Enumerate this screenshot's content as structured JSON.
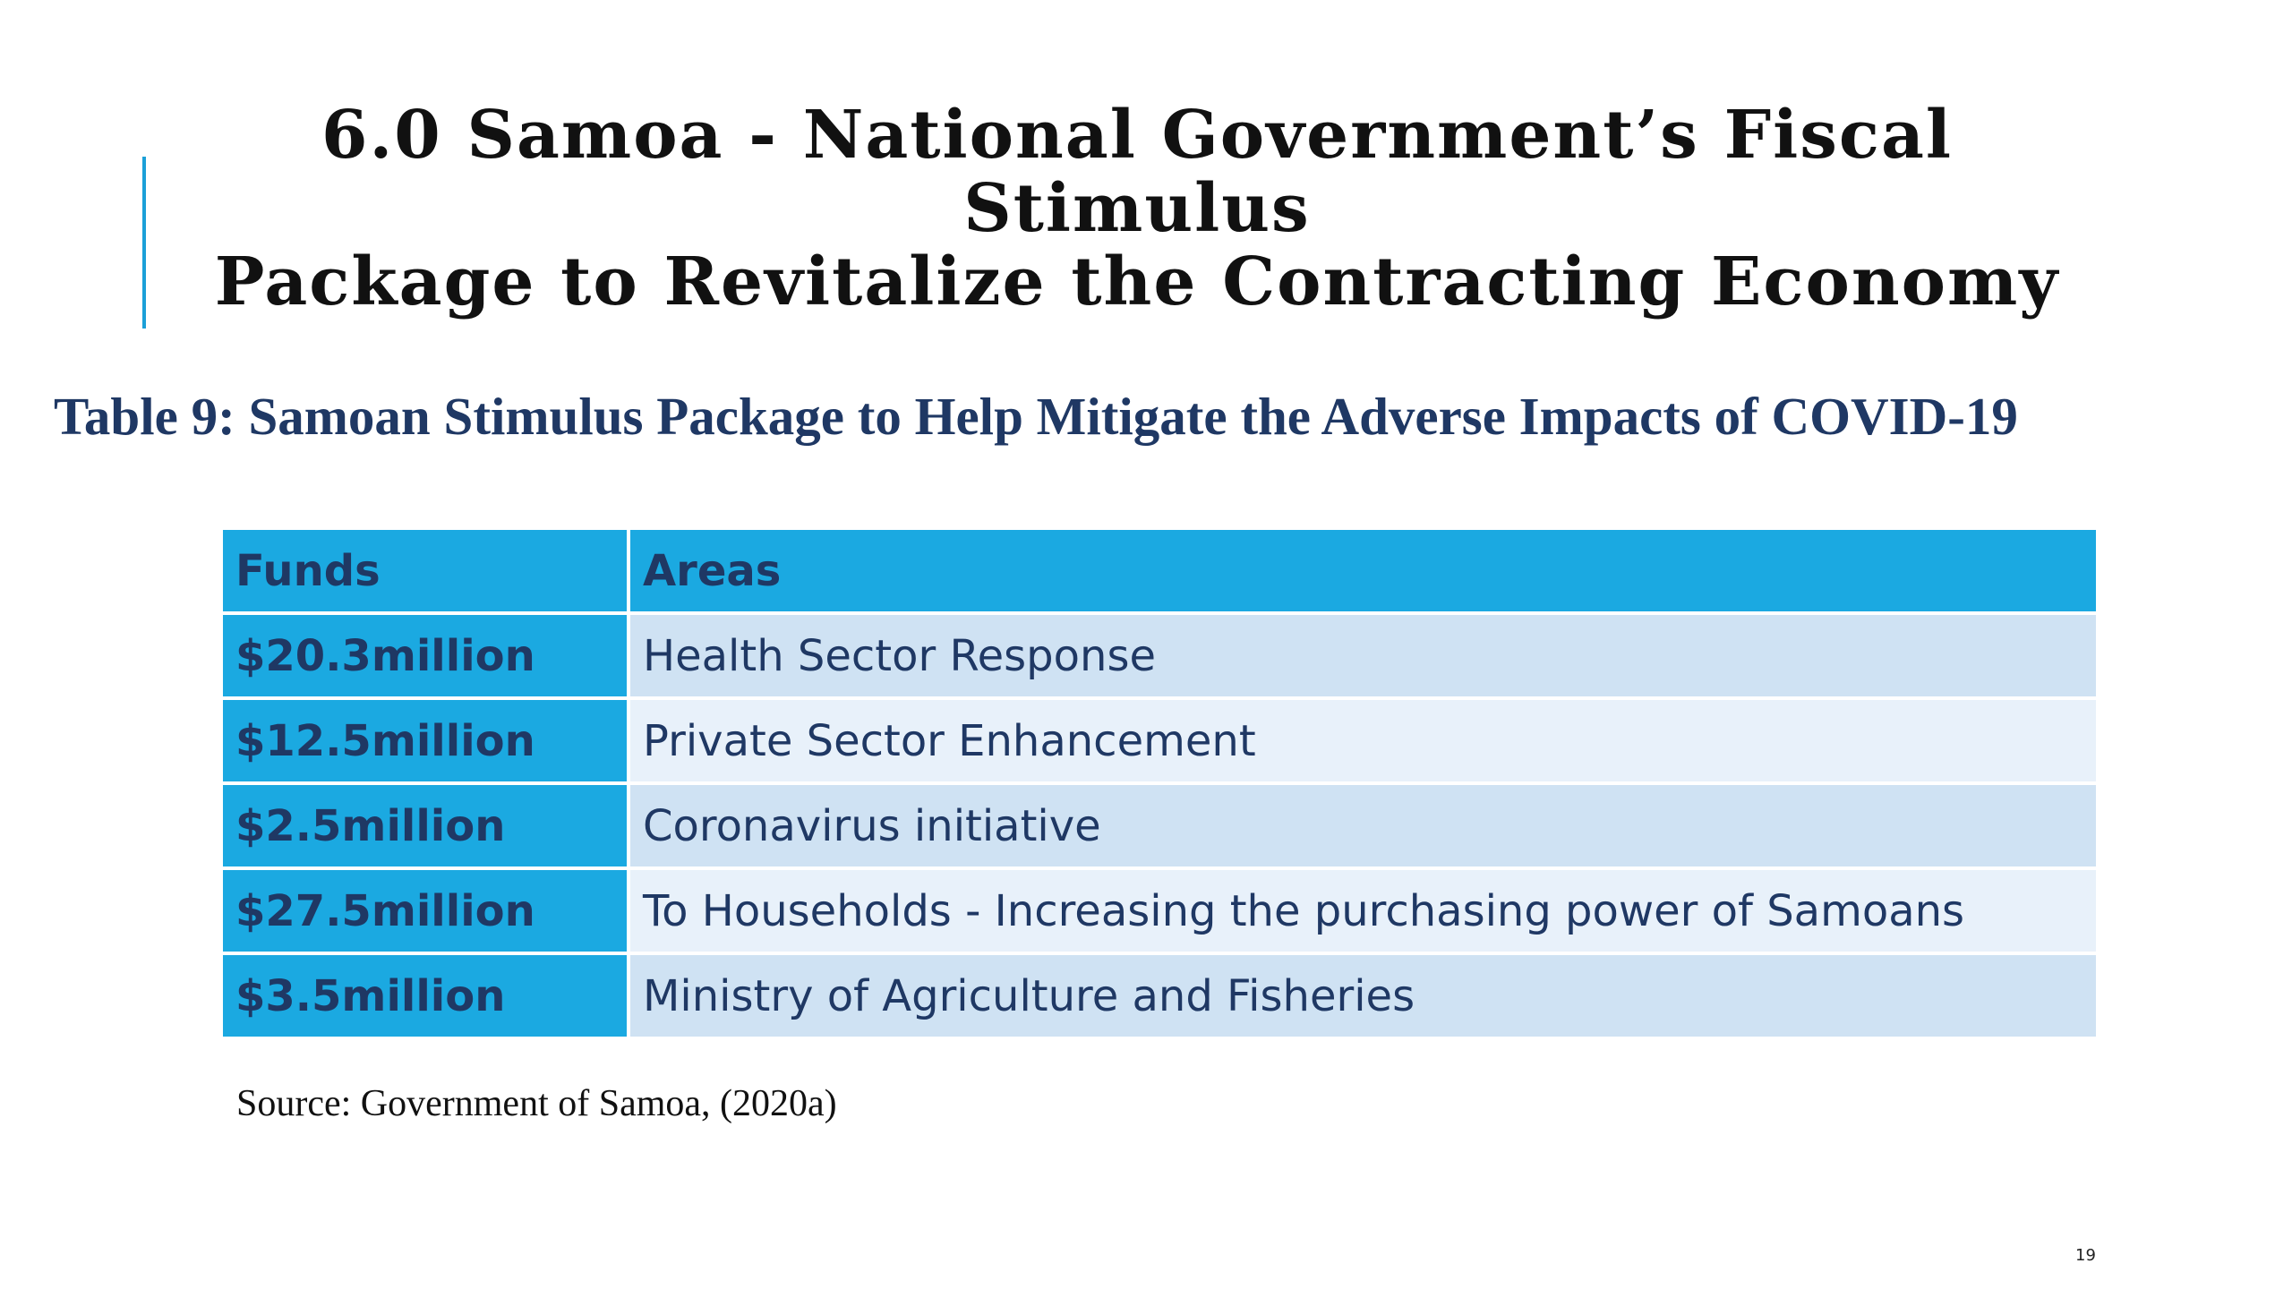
{
  "slide": {
    "title_line1": "6.0 Samoa - National Government’s Fiscal Stimulus",
    "title_line2": "Package to Revitalize the Contracting Economy",
    "table_caption": "Table 9: Samoan Stimulus Package to Help Mitigate the Adverse Impacts of COVID-19",
    "source": "Source: Government of Samoa, (2020a)",
    "page_number": "19"
  },
  "table": {
    "headers": [
      "Funds",
      "Areas"
    ],
    "rows": [
      {
        "funds": "$20.3million",
        "area": "Health Sector Response"
      },
      {
        "funds": "$12.5million",
        "area": "Private Sector Enhancement"
      },
      {
        "funds": "$2.5million",
        "area": "Coronavirus initiative"
      },
      {
        "funds": "$27.5million",
        "area": "To Households - Increasing the purchasing power of Samoans"
      },
      {
        "funds": "$3.5million",
        "area": "Ministry of Agriculture and Fisheries"
      }
    ]
  },
  "colors": {
    "accent": "#1ba0d8",
    "header_bg": "#1ba9e1",
    "row_dark": "#cfe2f3",
    "row_light": "#e8f1fa",
    "text_navy": "#1f3864"
  }
}
